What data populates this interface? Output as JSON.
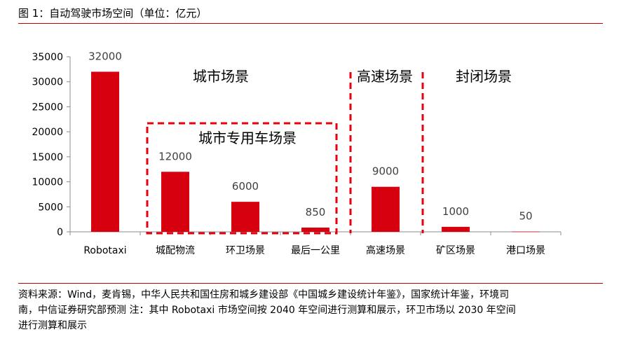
{
  "figure": {
    "title": "图 1：自动驾驶市场空间（单位：亿元）"
  },
  "source": {
    "lines": [
      "资料来源：Wind，麦肯锡，中华人民共和国住房和城乡建设部《中国城乡建设统计年鉴》，国家统计年鉴，环境司",
      "南，中信证券研究部预测   注：其中 Robotaxi 市场空间按 2040 年空间进行测算和展示，环卫市场以 2030 年空间",
      "进行测算和展示"
    ]
  },
  "chart_data": {
    "type": "bar",
    "title": "",
    "xlabel": "",
    "ylabel": "",
    "categories": [
      "Robotaxi",
      "城配物流",
      "环卫场景",
      "最后一公里",
      "高速场景",
      "矿区场景",
      "港口场景"
    ],
    "values": [
      32000,
      12000,
      6000,
      850,
      9000,
      1000,
      50
    ],
    "data_labels": [
      "32000",
      "12000",
      "6000",
      "850",
      "9000",
      "1000",
      "50"
    ],
    "ylim": [
      0,
      35000
    ],
    "yticks": [
      0,
      5000,
      10000,
      15000,
      20000,
      25000,
      30000,
      35000
    ],
    "ytick_labels": [
      "0",
      "5000",
      "10000",
      "15000",
      "20000",
      "25000",
      "30000",
      "35000"
    ],
    "grid": false,
    "bar_color": "#d7000f",
    "annotation_color": "#e8000d",
    "annotations": [
      {
        "text": "城市场景"
      },
      {
        "text": "城市专用车场景"
      },
      {
        "text": "高速场景"
      },
      {
        "text": "封闭场景"
      }
    ]
  }
}
